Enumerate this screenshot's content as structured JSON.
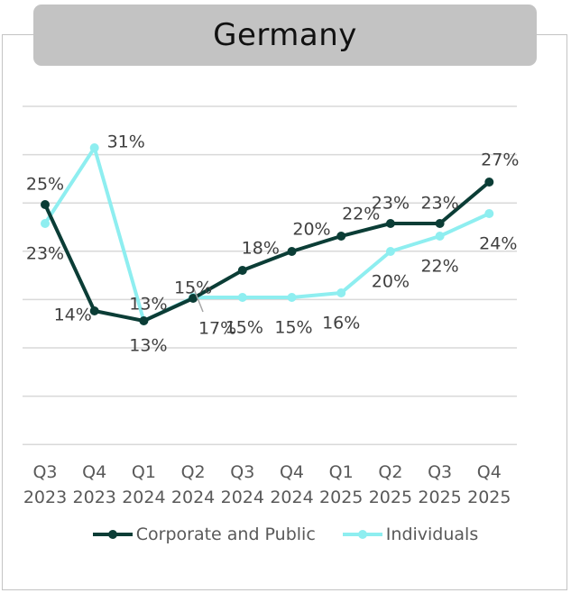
{
  "chart_data": {
    "type": "line",
    "title": "Germany",
    "categories": [
      [
        "Q3",
        "2023"
      ],
      [
        "Q4",
        "2023"
      ],
      [
        "Q1",
        "2024"
      ],
      [
        "Q2",
        "2024"
      ],
      [
        "Q3",
        "2024"
      ],
      [
        "Q4",
        "2024"
      ],
      [
        "Q1",
        "2025"
      ],
      [
        "Q2",
        "2025"
      ],
      [
        "Q3",
        "2025"
      ],
      [
        "Q4",
        "2025"
      ]
    ],
    "series": [
      {
        "name": "Corporate and Public",
        "color": "#0b3d36",
        "values": [
          25,
          14,
          13,
          17,
          18,
          20,
          22,
          23,
          23,
          27
        ],
        "labels": [
          "25%",
          "14%",
          "13%",
          "17%",
          "18%",
          "20%",
          "22%",
          "23%",
          "23%",
          "27%"
        ]
      },
      {
        "name": "Individuals",
        "color": "#8eeef0",
        "values": [
          23,
          31,
          13,
          15,
          15,
          15,
          16,
          20,
          22,
          24
        ],
        "labels": [
          "23%",
          "31%",
          "13%",
          "15%",
          "15%",
          "15%",
          "16%",
          "20%",
          "22%",
          "24%"
        ]
      }
    ],
    "xlabel": "",
    "ylabel": "",
    "grid": true,
    "legend": "bottom"
  }
}
